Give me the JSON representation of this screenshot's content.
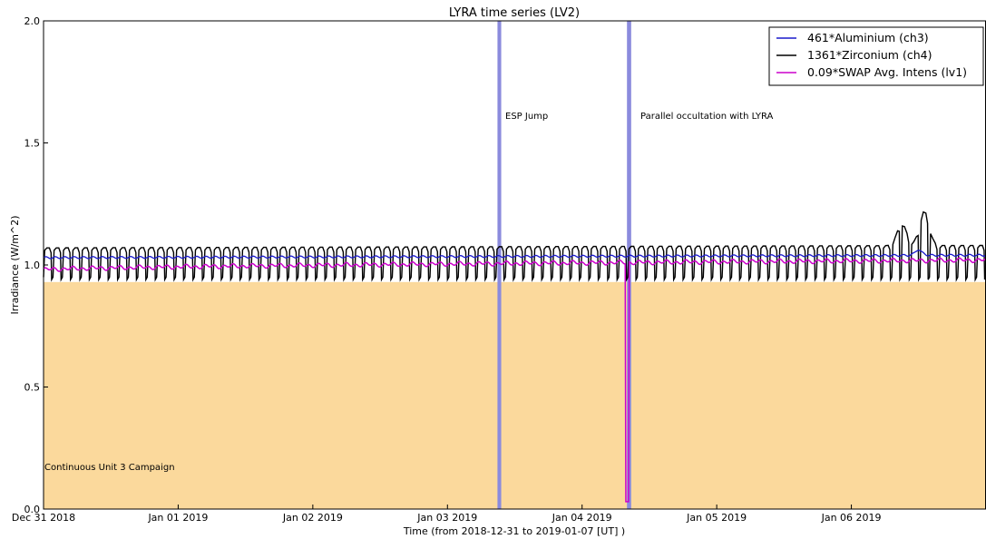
{
  "chart_data": {
    "type": "line",
    "title": "LYRA time series (LV2)",
    "xlabel": "Time (from 2018-12-31 to 2019-01-07 [UT] )",
    "ylabel": "Irradiance (W/m^2)",
    "xlim": [
      "2018-12-31T00:00",
      "2019-01-07T00:00"
    ],
    "ylim": [
      0.0,
      2.0
    ],
    "x_ticks": [
      "Dec 31 2018",
      "Jan 01 2019",
      "Jan 02 2019",
      "Jan 03 2019",
      "Jan 04 2019",
      "Jan 05 2019",
      "Jan 06 2019"
    ],
    "y_ticks": [
      "0.0",
      "0.5",
      "1.0",
      "1.5",
      "2.0"
    ],
    "grid": false,
    "legend_position": "top-right",
    "series": [
      {
        "name": "461*Aluminium (ch3)",
        "color": "#1a1acc",
        "baseline_start": 1.03,
        "baseline_end": 1.04,
        "peaks": [
          {
            "x": "2019-01-06T12:00",
            "y": 1.06
          }
        ]
      },
      {
        "name": "1361*Zirconium (ch4)",
        "color": "#000000",
        "pattern": "periodic occultation dips, ~ every 100 min",
        "upper_start": 1.07,
        "upper_end": 1.08,
        "lower": 0.94,
        "peaks": [
          {
            "x": "2019-01-06T09:00",
            "y": 1.17
          },
          {
            "x": "2019-01-06T13:00",
            "y": 1.22
          }
        ]
      },
      {
        "name": "0.09*SWAP Avg. Intens (lv1)",
        "color": "#cc00cc",
        "baseline_start": 0.98,
        "baseline_end": 1.02,
        "dips": [
          {
            "x": "2019-01-04T08:00",
            "y": 0.03
          }
        ]
      }
    ],
    "spans": [
      {
        "type": "shaded-region",
        "label": "Continuous Unit 3 Campaign",
        "x_start": "2018-12-31T00:00",
        "x_end": "2019-01-07T00:00",
        "y_start": 0.0,
        "y_end": 0.93,
        "color": "#fbd99c"
      },
      {
        "type": "event-band",
        "label": "ESP Jump",
        "x_start": "2019-01-03T08:55",
        "x_end": "2019-01-03T09:35",
        "color": "#8b8bdd"
      },
      {
        "type": "event-band",
        "label": "Parallel occultation with LYRA",
        "x_start": "2019-01-04T08:00",
        "x_end": "2019-01-04T08:45",
        "color": "#8b8bdd"
      }
    ]
  }
}
